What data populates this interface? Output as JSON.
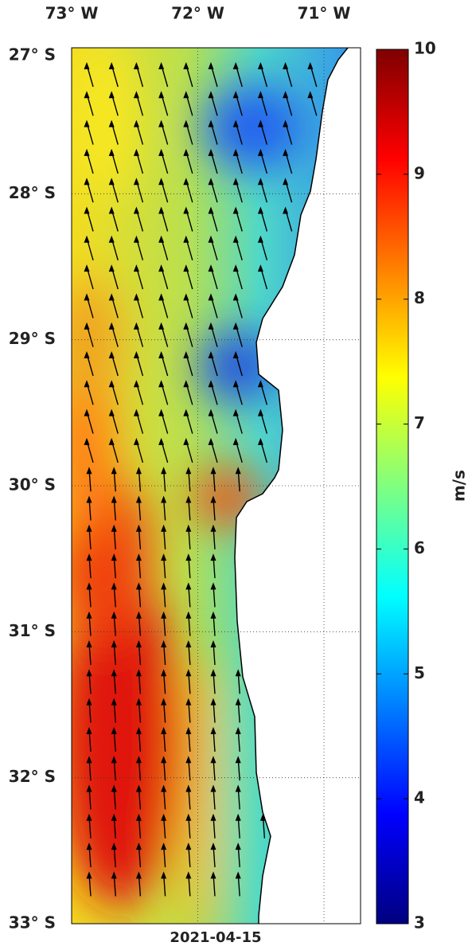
{
  "map": {
    "lon_lim": [
      -73,
      -70.71
    ],
    "lat_lim": [
      -27,
      -33
    ],
    "lon_ticks": [
      {
        "value": -73,
        "label": "73° W"
      },
      {
        "value": -72,
        "label": "72° W"
      },
      {
        "value": -71,
        "label": "71° W"
      }
    ],
    "lat_ticks": [
      {
        "value": -27,
        "label": "27° S"
      },
      {
        "value": -28,
        "label": "28° S"
      },
      {
        "value": -29,
        "label": "29° S"
      },
      {
        "value": -30,
        "label": "30° S"
      },
      {
        "value": -31,
        "label": "31° S"
      },
      {
        "value": -32,
        "label": "32° S"
      },
      {
        "value": -33,
        "label": "33° S"
      }
    ],
    "date": "2021-04-15"
  },
  "colorbar": {
    "label": "m/s",
    "lim": [
      3,
      10
    ],
    "ticks": [
      3,
      4,
      5,
      6,
      7,
      8,
      9,
      10
    ]
  }
}
